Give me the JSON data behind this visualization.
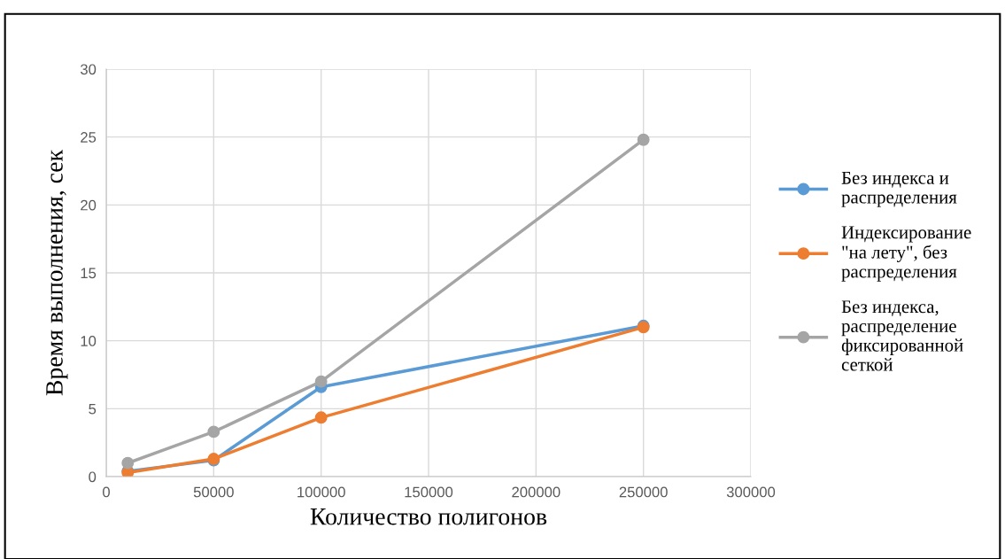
{
  "chart_data": {
    "type": "line",
    "xlabel": "Количество полигонов",
    "ylabel": "Время выполнения, сек",
    "x": [
      10000,
      50000,
      100000,
      250000
    ],
    "series": [
      {
        "name": "Без индекса и распределения",
        "color": "#5b9bd5",
        "values": [
          0.4,
          1.2,
          6.6,
          11.1
        ]
      },
      {
        "name": "Индексирование \"на лету\", без распределения",
        "color": "#ed7d31",
        "values": [
          0.3,
          1.3,
          4.35,
          11.0
        ]
      },
      {
        "name": "Без индекса, распределение фиксированной сеткой",
        "color": "#a5a5a5",
        "values": [
          1.0,
          3.3,
          7.0,
          24.8
        ]
      }
    ],
    "xlim": [
      0,
      300000
    ],
    "xticks": [
      0,
      50000,
      100000,
      150000,
      200000,
      250000,
      300000
    ],
    "ylim": [
      0,
      30
    ],
    "yticks": [
      0,
      5,
      10,
      15,
      20,
      25,
      30
    ],
    "grid": true,
    "legend": "right",
    "marker": "circle",
    "line_style": "solid"
  }
}
